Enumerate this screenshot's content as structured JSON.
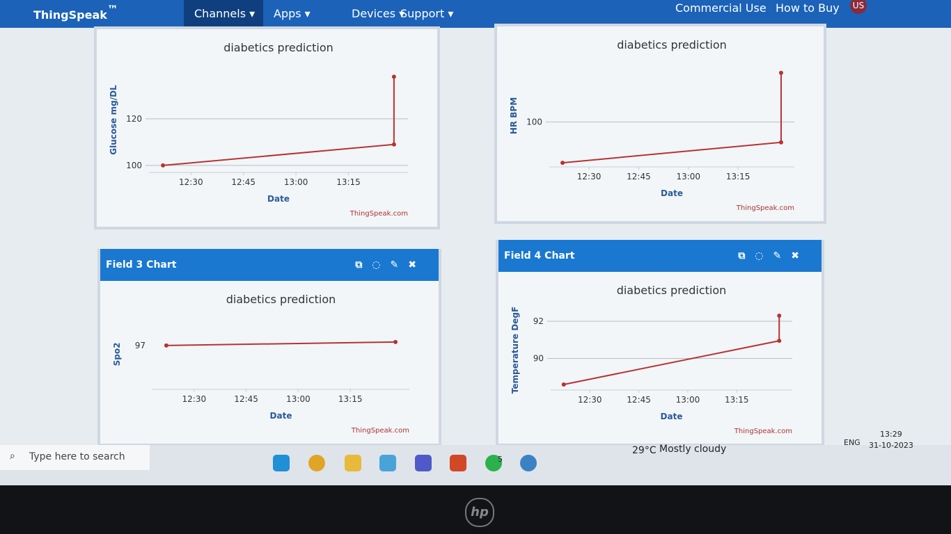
{
  "nav": {
    "brand": "ThingSpeak",
    "trademark": "™",
    "items": [
      "Channels",
      "Apps",
      "Devices",
      "Support"
    ],
    "right": [
      "Commercial Use",
      "How to Buy"
    ],
    "user": "US"
  },
  "panel_headers": [
    "Field 3 Chart",
    "Field 4 Chart"
  ],
  "charts": [
    {
      "type": "line",
      "title": "diabetics prediction",
      "ylabel": "Glucose mg/DL",
      "xlabel": "Date",
      "credit": "ThingSpeak.com",
      "color": "#b83232",
      "x": [
        "12:22",
        "13:28",
        "13:28"
      ],
      "values": [
        100,
        109,
        138
      ],
      "xlim": [
        "12:18",
        "13:32"
      ],
      "xticks": [
        "12:30",
        "12:45",
        "13:00",
        "13:15"
      ],
      "ylim": [
        97,
        142
      ],
      "yticks": [
        100,
        120
      ],
      "grid": true
    },
    {
      "type": "line",
      "title": "diabetics prediction",
      "ylabel": "HR BPM",
      "xlabel": "Date",
      "credit": "ThingSpeak.com",
      "color": "#b83232",
      "x": [
        "12:22",
        "13:28",
        "13:28"
      ],
      "values": [
        80,
        90,
        124
      ],
      "xlim": [
        "12:18",
        "13:32"
      ],
      "xticks": [
        "12:30",
        "12:45",
        "13:00",
        "13:15"
      ],
      "ylim": [
        78,
        128
      ],
      "yticks": [
        100
      ],
      "grid": true
    },
    {
      "type": "line",
      "title": "diabetics prediction",
      "ylabel": "Spo2",
      "xlabel": "Date",
      "credit": "ThingSpeak.com",
      "color": "#b83232",
      "x": [
        "12:22",
        "13:28"
      ],
      "values": [
        97,
        97.2
      ],
      "xlim": [
        "12:18",
        "13:32"
      ],
      "xticks": [
        "12:30",
        "12:45",
        "13:00",
        "13:15"
      ],
      "ylim": [
        94.5,
        98.5
      ],
      "yticks": [
        97
      ],
      "grid": false
    },
    {
      "type": "line",
      "title": "diabetics prediction",
      "ylabel": "Temperature DegF",
      "xlabel": "Date",
      "credit": "ThingSpeak.com",
      "color": "#b83232",
      "x": [
        "12:22",
        "13:28",
        "13:28"
      ],
      "values": [
        88.6,
        90.95,
        92.3
      ],
      "xlim": [
        "12:18",
        "13:32"
      ],
      "xticks": [
        "12:30",
        "12:45",
        "13:00",
        "13:15"
      ],
      "ylim": [
        88.3,
        92.6
      ],
      "yticks": [
        90,
        92
      ],
      "grid": true
    }
  ],
  "taskbar": {
    "search": "Type here to search",
    "whatsapp_badge": "5",
    "temperature": "29°C",
    "weather": "Mostly cloudy",
    "lang": "ENG",
    "time": "13:29",
    "date": "31-10-2023"
  },
  "bezel": {
    "logo": "hp"
  }
}
